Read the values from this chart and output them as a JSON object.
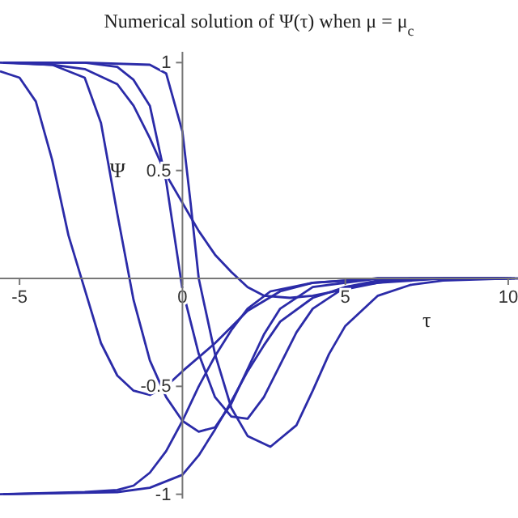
{
  "chart_data": {
    "type": "line",
    "title": "Numerical solution of Ψ(τ) when μ = μ$_{c}$",
    "xlabel": "τ",
    "ylabel": "Ψ",
    "xlim": [
      -5.6,
      10.3
    ],
    "ylim": [
      -1.02,
      1.05
    ],
    "xticks": [
      -5,
      0,
      5,
      10
    ],
    "yticks": [
      -1,
      -0.5,
      0.5,
      1
    ],
    "grid": false,
    "marker": "none",
    "line_style": "solid",
    "series": [
      {
        "color": "#2b2ba8",
        "x": [
          -5.6,
          -5,
          -4.5,
          -4,
          -3.5,
          -3,
          -2.5,
          -2,
          -1.5,
          -1,
          -0.5,
          0,
          1,
          2,
          3,
          4,
          6,
          10.3
        ],
        "values": [
          0.96,
          0.93,
          0.82,
          0.55,
          0.2,
          -0.05,
          -0.3,
          -0.45,
          -0.52,
          -0.54,
          -0.5,
          -0.43,
          -0.3,
          -0.15,
          -0.06,
          -0.02,
          0,
          0
        ]
      },
      {
        "color": "#2b2ba8",
        "x": [
          -5.6,
          -4,
          -3,
          -2.5,
          -2,
          -1.5,
          -1,
          -0.5,
          0,
          0.5,
          1,
          1.5,
          2,
          2.5,
          3,
          4,
          6,
          10.2
        ],
        "values": [
          1,
          0.99,
          0.93,
          0.72,
          0.3,
          -0.1,
          -0.38,
          -0.55,
          -0.66,
          -0.71,
          -0.69,
          -0.58,
          -0.42,
          -0.26,
          -0.14,
          -0.04,
          0,
          0
        ]
      },
      {
        "color": "#2b2ba8",
        "x": [
          -5.5,
          -3,
          -2,
          -1.5,
          -1,
          -0.5,
          0,
          0.5,
          1,
          1.5,
          2,
          2.5,
          3,
          3.5,
          4,
          5,
          7,
          10.1
        ],
        "values": [
          1,
          1,
          0.98,
          0.92,
          0.8,
          0.45,
          -0.05,
          -0.35,
          -0.55,
          -0.64,
          -0.65,
          -0.55,
          -0.4,
          -0.25,
          -0.14,
          -0.04,
          0,
          0
        ]
      },
      {
        "color": "#2b2ba8",
        "x": [
          -5.4,
          -3,
          -1,
          -0.5,
          0,
          0.25,
          0.5,
          1,
          1.5,
          2,
          2.7,
          3.5,
          4,
          4.5,
          5,
          6,
          7,
          8,
          10
        ],
        "values": [
          1,
          1,
          0.99,
          0.95,
          0.68,
          0.35,
          0,
          -0.35,
          -0.6,
          -0.73,
          -0.78,
          -0.68,
          -0.52,
          -0.35,
          -0.22,
          -0.08,
          -0.03,
          -0.01,
          0
        ]
      },
      {
        "color": "#2b2ba8",
        "x": [
          -5.3,
          -4,
          -3,
          -2,
          -1.5,
          -1,
          -0.5,
          0,
          0.5,
          1,
          1.5,
          2,
          2.5,
          3.3,
          4,
          5,
          6,
          8,
          9.9
        ],
        "values": [
          1,
          0.99,
          0.97,
          0.9,
          0.8,
          0.65,
          0.48,
          0.35,
          0.22,
          0.11,
          0.03,
          -0.04,
          -0.08,
          -0.09,
          -0.08,
          -0.05,
          -0.02,
          0,
          0
        ]
      },
      {
        "color": "#2b2ba8",
        "x": [
          -5.6,
          -3,
          -2,
          -1.5,
          -1,
          -0.5,
          0,
          0.5,
          1,
          1.5,
          2,
          2.7,
          4,
          6,
          9.8
        ],
        "values": [
          -1,
          -0.99,
          -0.98,
          -0.96,
          -0.9,
          -0.8,
          -0.66,
          -0.5,
          -0.36,
          -0.24,
          -0.14,
          -0.06,
          -0.02,
          0,
          0
        ]
      },
      {
        "color": "#2b2ba8",
        "x": [
          -5.5,
          -2,
          -1,
          0,
          0.5,
          1,
          1.5,
          2,
          2.5,
          3,
          4,
          5,
          6,
          8,
          9.7
        ],
        "values": [
          -1,
          -0.99,
          -0.97,
          -0.91,
          -0.82,
          -0.7,
          -0.57,
          -0.43,
          -0.31,
          -0.2,
          -0.09,
          -0.04,
          -0.01,
          0,
          0
        ]
      }
    ]
  }
}
